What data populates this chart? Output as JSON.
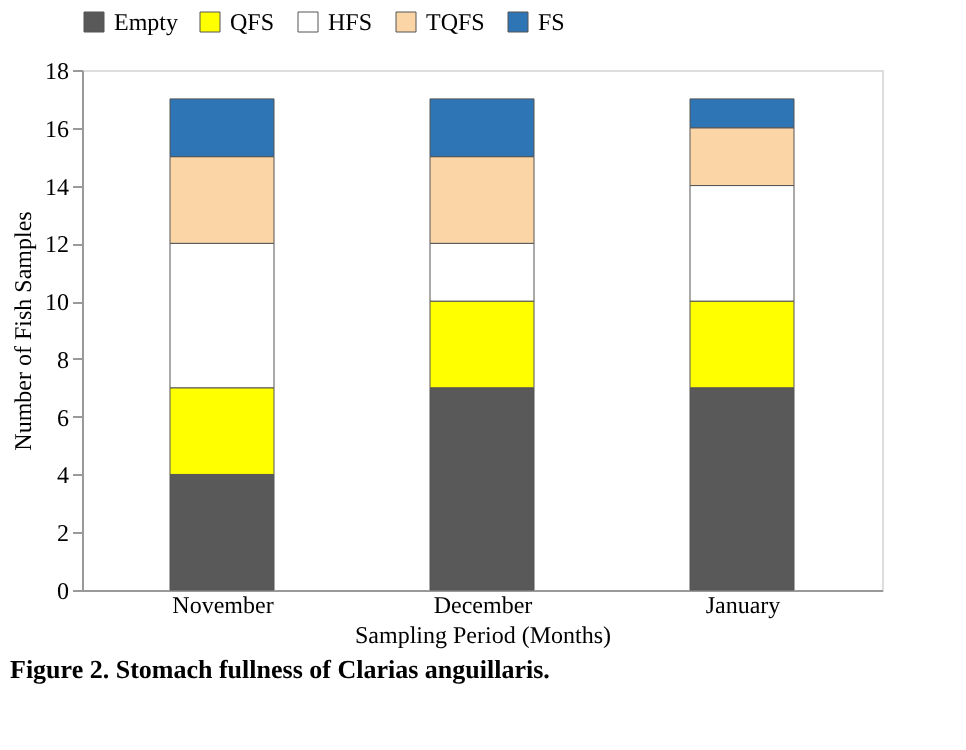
{
  "chart_data": {
    "type": "bar",
    "stacked": true,
    "xlabel": "Sampling Period (Months)",
    "ylabel": "Number of Fish Samples",
    "categories": [
      "November",
      "December",
      "January"
    ],
    "series": [
      {
        "name": "Empty",
        "color": "#595959",
        "values": [
          4,
          7,
          7
        ]
      },
      {
        "name": "QFS",
        "color": "#ffff00",
        "values": [
          3,
          3,
          3
        ]
      },
      {
        "name": "HFS",
        "color": "#ffffff",
        "values": [
          5,
          2,
          4
        ]
      },
      {
        "name": "TQFS",
        "color": "#fbd5a5",
        "values": [
          3,
          3,
          2
        ]
      },
      {
        "name": "FS",
        "color": "#2e75b6",
        "values": [
          2,
          2,
          1
        ]
      }
    ],
    "ylim": [
      0,
      18
    ],
    "yticks": [
      0,
      2,
      4,
      6,
      8,
      10,
      12,
      14,
      16,
      18
    ],
    "grid": false,
    "legend": "top",
    "annotations": [
      "Figure 2. Stomach fullness of Clarias anguillaris."
    ]
  }
}
